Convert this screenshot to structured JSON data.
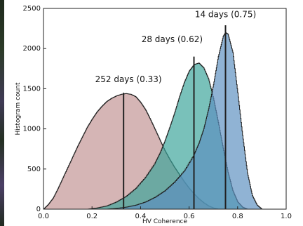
{
  "chart_data": {
    "type": "area",
    "title": "",
    "xlabel": "HV Coherence",
    "ylabel": "Histogram count",
    "xlim": [
      0.0,
      1.0
    ],
    "ylim": [
      0,
      2500
    ],
    "x_ticks": [
      "0.0",
      "0.2",
      "0.4",
      "0.6",
      "0.8",
      "1.0"
    ],
    "y_ticks": [
      "0",
      "500",
      "1000",
      "1500",
      "2000",
      "2500"
    ],
    "grid": false,
    "legend": "none",
    "series": [
      {
        "name": "252 days (0.33)",
        "color": "#c9a0a0",
        "median": 0.33,
        "median_height": 1450,
        "label_pos": [
          0.35,
          1580
        ],
        "points": [
          [
            0.0,
            0
          ],
          [
            0.02,
            60
          ],
          [
            0.04,
            140
          ],
          [
            0.06,
            260
          ],
          [
            0.08,
            390
          ],
          [
            0.1,
            520
          ],
          [
            0.12,
            650
          ],
          [
            0.14,
            780
          ],
          [
            0.16,
            900
          ],
          [
            0.18,
            1020
          ],
          [
            0.2,
            1120
          ],
          [
            0.22,
            1210
          ],
          [
            0.24,
            1280
          ],
          [
            0.26,
            1340
          ],
          [
            0.28,
            1380
          ],
          [
            0.3,
            1410
          ],
          [
            0.32,
            1430
          ],
          [
            0.34,
            1440
          ],
          [
            0.36,
            1430
          ],
          [
            0.38,
            1400
          ],
          [
            0.4,
            1330
          ],
          [
            0.42,
            1240
          ],
          [
            0.44,
            1120
          ],
          [
            0.46,
            990
          ],
          [
            0.48,
            860
          ],
          [
            0.5,
            730
          ],
          [
            0.52,
            620
          ],
          [
            0.54,
            520
          ],
          [
            0.56,
            430
          ],
          [
            0.58,
            340
          ],
          [
            0.6,
            260
          ],
          [
            0.62,
            190
          ],
          [
            0.64,
            130
          ],
          [
            0.66,
            80
          ],
          [
            0.68,
            40
          ],
          [
            0.7,
            15
          ],
          [
            0.72,
            0
          ]
        ]
      },
      {
        "name": "28 days (0.62)",
        "color": "#3aa39a",
        "median": 0.62,
        "median_height": 1900,
        "label_pos": [
          0.53,
          2080
        ],
        "points": [
          [
            0.18,
            0
          ],
          [
            0.22,
            15
          ],
          [
            0.26,
            40
          ],
          [
            0.3,
            90
          ],
          [
            0.34,
            160
          ],
          [
            0.38,
            260
          ],
          [
            0.42,
            400
          ],
          [
            0.46,
            580
          ],
          [
            0.48,
            700
          ],
          [
            0.5,
            850
          ],
          [
            0.52,
            1020
          ],
          [
            0.54,
            1200
          ],
          [
            0.56,
            1400
          ],
          [
            0.58,
            1580
          ],
          [
            0.6,
            1720
          ],
          [
            0.62,
            1800
          ],
          [
            0.64,
            1820
          ],
          [
            0.66,
            1760
          ],
          [
            0.68,
            1620
          ],
          [
            0.7,
            1380
          ],
          [
            0.72,
            1080
          ],
          [
            0.74,
            760
          ],
          [
            0.76,
            460
          ],
          [
            0.78,
            230
          ],
          [
            0.8,
            90
          ],
          [
            0.82,
            25
          ],
          [
            0.84,
            0
          ]
        ]
      },
      {
        "name": "14 days (0.75)",
        "color": "#5b8fc0",
        "median": 0.75,
        "median_height": 2290,
        "label_pos": [
          0.75,
          2390
        ],
        "points": [
          [
            0.26,
            0
          ],
          [
            0.3,
            10
          ],
          [
            0.34,
            25
          ],
          [
            0.38,
            50
          ],
          [
            0.42,
            90
          ],
          [
            0.46,
            150
          ],
          [
            0.5,
            230
          ],
          [
            0.54,
            340
          ],
          [
            0.58,
            480
          ],
          [
            0.62,
            680
          ],
          [
            0.64,
            820
          ],
          [
            0.66,
            1000
          ],
          [
            0.68,
            1250
          ],
          [
            0.7,
            1550
          ],
          [
            0.72,
            1900
          ],
          [
            0.74,
            2150
          ],
          [
            0.75,
            2200
          ],
          [
            0.76,
            2180
          ],
          [
            0.78,
            1950
          ],
          [
            0.8,
            1450
          ],
          [
            0.82,
            920
          ],
          [
            0.84,
            450
          ],
          [
            0.86,
            170
          ],
          [
            0.88,
            50
          ],
          [
            0.9,
            0
          ]
        ]
      }
    ]
  }
}
